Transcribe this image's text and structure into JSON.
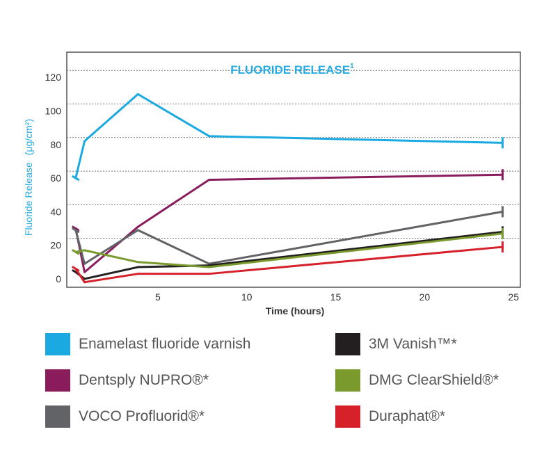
{
  "chart_data": {
    "type": "line",
    "title": "FLUORIDE RELEASE",
    "title_superscript": "1",
    "xlabel": "Time (hours)",
    "ylabel": "Fluoride Release",
    "ylabel_unit": "(μg/cm²)",
    "xlim": [
      0,
      25.5
    ],
    "ylim": [
      -5,
      135
    ],
    "xticks": [
      5,
      10,
      15,
      20,
      25
    ],
    "yticks": [
      0,
      20,
      40,
      60,
      80,
      100,
      120
    ],
    "grid": "horizontal dotted",
    "legend_position": "bottom",
    "series": [
      {
        "name": "Enamelast fluoride varnish",
        "color": "#1ba9e1",
        "x": [
          0.5,
          1,
          4,
          8,
          24.5
        ],
        "y": [
          60,
          82,
          110,
          85,
          81
        ],
        "end_error": true
      },
      {
        "name": "Dentsply NUPRO®*",
        "color": "#8a1c5c",
        "x": [
          0.5,
          1,
          4,
          8,
          24.5
        ],
        "y": [
          30,
          4,
          31,
          59,
          62
        ],
        "end_error": true
      },
      {
        "name": "VOCO Profluorid®*",
        "color": "#626366",
        "x": [
          0.5,
          1,
          4,
          8,
          24.5
        ],
        "y": [
          29,
          9,
          29,
          9,
          40
        ],
        "end_error": true
      },
      {
        "name": "3M Vanish™*",
        "color": "#231f20",
        "x": [
          0.5,
          1,
          4,
          8,
          24.5
        ],
        "y": [
          4,
          0,
          7,
          8,
          28
        ],
        "end_error": true
      },
      {
        "name": "DMG ClearShield®*",
        "color": "#7a9a2e",
        "x": [
          0.5,
          1,
          4,
          8,
          24.5
        ],
        "y": [
          16,
          17,
          10,
          7,
          27
        ],
        "end_error": true
      },
      {
        "name": "Duraphat®*",
        "color": "#d6202a",
        "x": [
          0.5,
          1,
          4,
          8,
          24.5
        ],
        "y": [
          6,
          -2,
          3,
          3,
          19
        ],
        "end_error": true
      }
    ]
  }
}
